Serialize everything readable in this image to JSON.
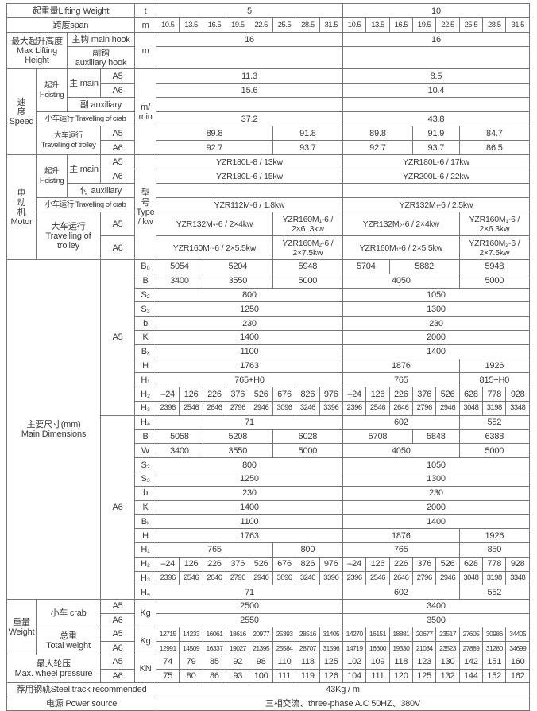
{
  "labels": {
    "lifting_weight": "起重量Lifting Weight",
    "t": "t",
    "span": "跨度span",
    "m": "m",
    "max_lift": "最大起升高度\nMax Lifting\nHeight",
    "main_hook": "主钩 main hook",
    "aux_hook": "副钩\nauxiliary hook",
    "speed": "速\n度\nSpeed",
    "hoisting": "起升\nHoisting",
    "main": "主 main",
    "A5": "A5",
    "A6": "A6",
    "speed_aux": "副 auxiliary",
    "crab_travel": "小车运行 Travelling of crab",
    "trolley_travel": "大车运行\nTravelling of trolley",
    "speed_unit": "m/\nmin",
    "motor": "电\n动\n机\nMotor",
    "motor_aux": "付 auxiliary",
    "trolley_travel_motor": "大车运行\nTravelling of\ntrolley",
    "motor_unit": "型\n号\nType\n/ kw",
    "main_dims": "主要尺寸(mm)\nMain Dimensions",
    "weight": "重量\nWeight",
    "crab": "小车 crab",
    "kg": "Kg",
    "total_weight": "总重\nTotal weight",
    "wheel": "最大轮压\nMax.  wheel pressure",
    "kn": "KN",
    "track": "荐用钢轨Steel track recommended",
    "power": "电源  Power source"
  },
  "header": {
    "capacity": [
      {
        "value": "5",
        "spans": 8
      },
      {
        "value": "10",
        "spans": 8
      }
    ],
    "spans": [
      "10.5",
      "13.5",
      "16.5",
      "19.5",
      "22.5",
      "25.5",
      "28.5",
      "31.5",
      "10.5",
      "13.5",
      "16.5",
      "19.5",
      "22.5",
      "25.5",
      "28.5",
      "31.5"
    ]
  },
  "values": {
    "lift_main": [
      {
        "value": "16",
        "spans": 8
      },
      {
        "value": "16",
        "spans": 8
      }
    ],
    "lift_aux": [
      {
        "value": "",
        "spans": 8
      },
      {
        "value": "",
        "spans": 8
      }
    ],
    "speed_main_a5": [
      {
        "value": "11.3",
        "spans": 8
      },
      {
        "value": "8.5",
        "spans": 8
      }
    ],
    "speed_main_a6": [
      {
        "value": "15.6",
        "spans": 8
      },
      {
        "value": "10.4",
        "spans": 8
      }
    ],
    "speed_aux": [
      {
        "value": "",
        "spans": 8
      },
      {
        "value": "",
        "spans": 8
      }
    ],
    "speed_crab": [
      {
        "value": "37.2",
        "spans": 8
      },
      {
        "value": "43.8",
        "spans": 8
      }
    ],
    "speed_trolley_a5": [
      {
        "value": "89.8",
        "spans": 5
      },
      {
        "value": "91.8",
        "spans": 3
      },
      {
        "value": "89.8",
        "spans": 3
      },
      {
        "value": "91.9",
        "spans": 2
      },
      {
        "value": "84.7",
        "spans": 3
      }
    ],
    "speed_trolley_a6": [
      {
        "value": "92.7",
        "spans": 5
      },
      {
        "value": "93.7",
        "spans": 3
      },
      {
        "value": "92.7",
        "spans": 3
      },
      {
        "value": "93.7",
        "spans": 2
      },
      {
        "value": "86.5",
        "spans": 3
      }
    ],
    "motor_main_a5": [
      {
        "value": "YZR180L-8 / 13kw",
        "spans": 8
      },
      {
        "value": "YZR180L-6 / 17kw",
        "spans": 8
      }
    ],
    "motor_main_a6": [
      {
        "value": "YZR180L-6 / 15kw",
        "spans": 8
      },
      {
        "value": "YZR200L-6 / 22kw",
        "spans": 8
      }
    ],
    "motor_aux": [
      {
        "value": "",
        "spans": 8
      },
      {
        "value": "",
        "spans": 8
      }
    ],
    "motor_crab": [
      {
        "value": "YZR112M-6 / 1.8kw",
        "spans": 8
      },
      {
        "value": "YZR132M₁-6 / 2.5kw",
        "spans": 8
      }
    ],
    "motor_trolley_a5": [
      {
        "value": "YZR132M₂-6 / 2×4kw",
        "spans": 5
      },
      {
        "value": "YZR160M₁-6 /\n2×6 .3kw",
        "spans": 3
      },
      {
        "value": "YZR132M₂-6 / 2×4kw",
        "spans": 5
      },
      {
        "value": "YZR160M₁-6 /\n2×6.3kw",
        "spans": 3
      }
    ],
    "motor_trolley_a6": [
      {
        "value": "YZR160M₁-6 / 2×5.5kw",
        "spans": 5
      },
      {
        "value": "YZR160M₂-6 /\n2×7.5kw",
        "spans": 3
      },
      {
        "value": "YZR160M₁-6 / 2×5.5kw",
        "spans": 5
      },
      {
        "value": "YZR160M₂-6 /\n2×7.5kw",
        "spans": 3
      }
    ],
    "weight_crab_a5": [
      {
        "value": "2500",
        "spans": 8
      },
      {
        "value": "3400",
        "spans": 8
      }
    ],
    "weight_crab_a6": [
      {
        "value": "2550",
        "spans": 8
      },
      {
        "value": "3500",
        "spans": 8
      }
    ],
    "total_a5": [
      "12715",
      "14233",
      "16061",
      "18616",
      "20977",
      "25393",
      "28516",
      "31405",
      "14270",
      "16151",
      "18881",
      "20677",
      "23517",
      "27605",
      "30986",
      "34405"
    ],
    "total_a6": [
      "12991",
      "14509",
      "16337",
      "19027",
      "21395",
      "25584",
      "28707",
      "31596",
      "14719",
      "16600",
      "19330",
      "21034",
      "23523",
      "27889",
      "31280",
      "34699"
    ],
    "wheel_a5": [
      "74",
      "79",
      "85",
      "92",
      "98",
      "110",
      "118",
      "125",
      "102",
      "109",
      "118",
      "123",
      "130",
      "142",
      "151",
      "160"
    ],
    "wheel_a6": [
      "75",
      "80",
      "86",
      "93",
      "100",
      "111",
      "119",
      "126",
      "104",
      "111",
      "120",
      "125",
      "132",
      "144",
      "152",
      "162"
    ],
    "track": [
      {
        "value": "43Kg / m",
        "spans": 16
      }
    ],
    "power": [
      {
        "value": "三相交流、three-phase A.C 50HZ、380V",
        "spans": 16
      }
    ]
  },
  "dims": {
    "A5": [
      {
        "sym": "B₀",
        "values": [
          {
            "value": "5054",
            "spans": 2
          },
          {
            "value": "5204",
            "spans": 3
          },
          {
            "value": "5948",
            "spans": 3
          },
          {
            "value": "5704",
            "spans": 2
          },
          {
            "value": "5882",
            "spans": 3
          },
          {
            "value": "5948",
            "spans": 3
          }
        ]
      },
      {
        "sym": "B",
        "values": [
          {
            "value": "3400",
            "spans": 2
          },
          {
            "value": "3550",
            "spans": 3
          },
          {
            "value": "5000",
            "spans": 3
          },
          {
            "value": "4050",
            "spans": 5
          },
          {
            "value": "5000",
            "spans": 3
          }
        ]
      },
      {
        "sym": "S₂",
        "values": [
          {
            "value": "800",
            "spans": 8
          },
          {
            "value": "1050",
            "spans": 8
          }
        ]
      },
      {
        "sym": "S₃",
        "values": [
          {
            "value": "1250",
            "spans": 8
          },
          {
            "value": "1300",
            "spans": 8
          }
        ]
      },
      {
        "sym": "b",
        "values": [
          {
            "value": "230",
            "spans": 8
          },
          {
            "value": "230",
            "spans": 8
          }
        ]
      },
      {
        "sym": "K",
        "values": [
          {
            "value": "1400",
            "spans": 8
          },
          {
            "value": "2000",
            "spans": 8
          }
        ]
      },
      {
        "sym": "Bₓ",
        "values": [
          {
            "value": "1100",
            "spans": 8
          },
          {
            "value": "1400",
            "spans": 8
          }
        ]
      },
      {
        "sym": "H",
        "values": [
          {
            "value": "1763",
            "spans": 8
          },
          {
            "value": "1876",
            "spans": 5
          },
          {
            "value": "1926",
            "spans": 3
          }
        ]
      },
      {
        "sym": "H₁",
        "values": [
          {
            "value": "765+H0",
            "spans": 8
          },
          {
            "value": "765",
            "spans": 5
          },
          {
            "value": "815+H0",
            "spans": 3
          }
        ]
      },
      {
        "sym": "H₂",
        "values": [
          "–24",
          "126",
          "226",
          "376",
          "526",
          "676",
          "826",
          "976",
          "–24",
          "126",
          "226",
          "376",
          "526",
          "628",
          "778",
          "928"
        ]
      },
      {
        "sym": "H₃",
        "values": [
          "2396",
          "2546",
          "2646",
          "2796",
          "2946",
          "3096",
          "3246",
          "3396",
          "2396",
          "2546",
          "2646",
          "2796",
          "2946",
          "3048",
          "3198",
          "3348"
        ]
      }
    ],
    "A6": [
      {
        "sym": "H₄",
        "values": [
          {
            "value": "71",
            "spans": 8
          },
          {
            "value": "602",
            "spans": 5
          },
          {
            "value": "552",
            "spans": 3
          }
        ]
      },
      {
        "sym": "B",
        "values": [
          {
            "value": "5058",
            "spans": 2
          },
          {
            "value": "5208",
            "spans": 3
          },
          {
            "value": "6028",
            "spans": 3
          },
          {
            "value": "5708",
            "spans": 3
          },
          {
            "value": "5848",
            "spans": 2
          },
          {
            "value": "6388",
            "spans": 3
          }
        ]
      },
      {
        "sym": "W",
        "values": [
          {
            "value": "3400",
            "spans": 2
          },
          {
            "value": "3550",
            "spans": 3
          },
          {
            "value": "5000",
            "spans": 3
          },
          {
            "value": "4050",
            "spans": 5
          },
          {
            "value": "5000",
            "spans": 3
          }
        ]
      },
      {
        "sym": "S₂",
        "values": [
          {
            "value": "800",
            "spans": 8
          },
          {
            "value": "1050",
            "spans": 8
          }
        ]
      },
      {
        "sym": "S₃",
        "values": [
          {
            "value": "1250",
            "spans": 8
          },
          {
            "value": "1300",
            "spans": 8
          }
        ]
      },
      {
        "sym": "b",
        "values": [
          {
            "value": "230",
            "spans": 8
          },
          {
            "value": "230",
            "spans": 8
          }
        ]
      },
      {
        "sym": "K",
        "values": [
          {
            "value": "1400",
            "spans": 8
          },
          {
            "value": "2000",
            "spans": 8
          }
        ]
      },
      {
        "sym": "Bₓ",
        "values": [
          {
            "value": "1100",
            "spans": 8
          },
          {
            "value": "1400",
            "spans": 8
          }
        ]
      },
      {
        "sym": "H",
        "values": [
          {
            "value": "1763",
            "spans": 8
          },
          {
            "value": "1876",
            "spans": 5
          },
          {
            "value": "1926",
            "spans": 3
          }
        ]
      },
      {
        "sym": "H₁",
        "values": [
          {
            "value": "765",
            "spans": 5
          },
          {
            "value": "800",
            "spans": 3
          },
          {
            "value": "765",
            "spans": 5
          },
          {
            "value": "850",
            "spans": 3
          }
        ]
      },
      {
        "sym": "H₂",
        "values": [
          "–24",
          "126",
          "226",
          "376",
          "526",
          "676",
          "826",
          "976",
          "–24",
          "126",
          "226",
          "376",
          "526",
          "628",
          "778",
          "928"
        ]
      },
      {
        "sym": "H₃",
        "values": [
          "2396",
          "2546",
          "2646",
          "2796",
          "2946",
          "3096",
          "3246",
          "3396",
          "2396",
          "2546",
          "2646",
          "2796",
          "2946",
          "3048",
          "3198",
          "3348"
        ]
      },
      {
        "sym": "H₄",
        "values": [
          {
            "value": "71",
            "spans": 8
          },
          {
            "value": "602",
            "spans": 5
          },
          {
            "value": "552",
            "spans": 3
          }
        ]
      }
    ]
  }
}
